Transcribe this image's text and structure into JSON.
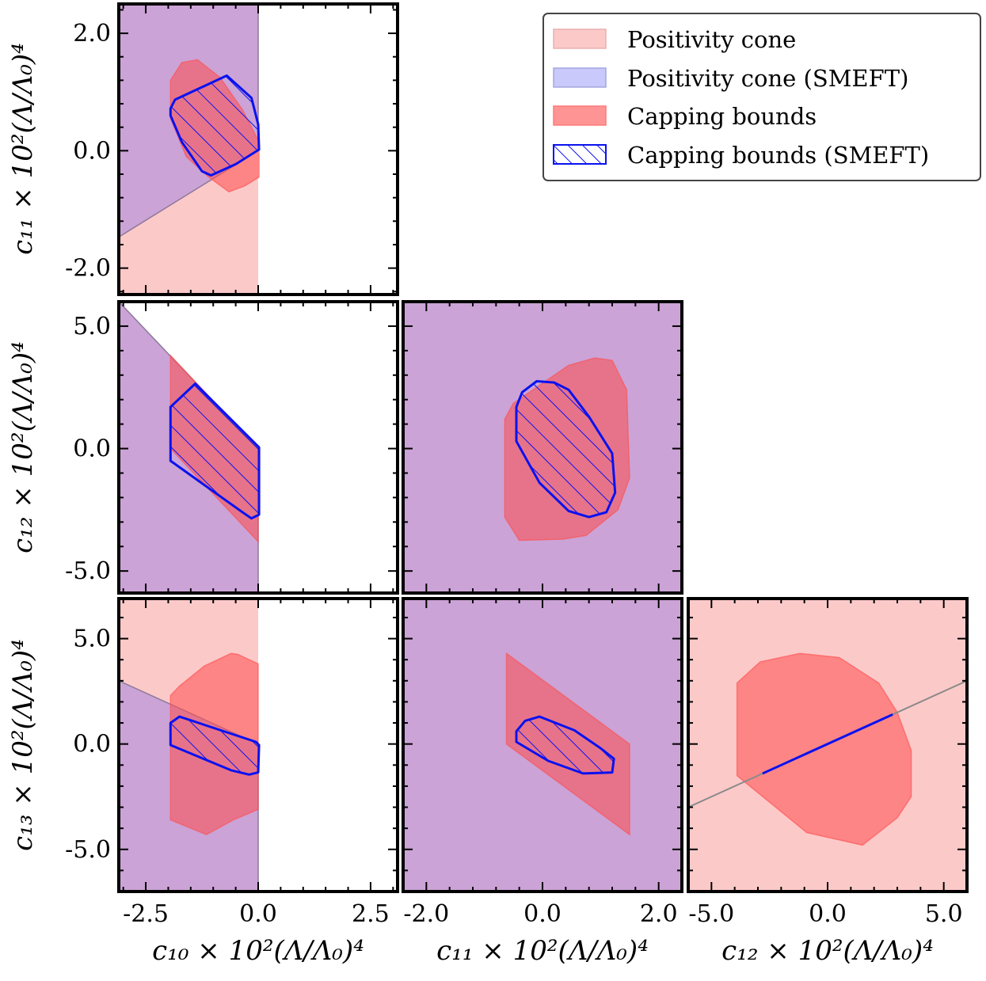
{
  "legend": {
    "items": [
      {
        "label": "Positivity cone",
        "kind": "cone"
      },
      {
        "label": "Positivity cone (SMEFT)",
        "kind": "cone_smeft"
      },
      {
        "label": "Capping bounds",
        "kind": "cap"
      },
      {
        "label": "Capping bounds (SMEFT)",
        "kind": "cap_smeft"
      }
    ]
  },
  "colors": {
    "cone": "#fcc9c9",
    "cone_smeft": "#cba3d6",
    "cap": "#ff4d4d",
    "smeft": "#0a12ef",
    "frame": "#000000"
  },
  "axes_labels": {
    "x": [
      "c₁₀ × 10²(Λ/Λ₀)⁴",
      "c₁₁ × 10²(Λ/Λ₀)⁴",
      "c₁₂ × 10²(Λ/Λ₀)⁴"
    ],
    "y": [
      "c₁₁ × 10²(Λ/Λ₀)⁴",
      "c₁₂ × 10²(Λ/Λ₀)⁴",
      "c₁₃ × 10²(Λ/Λ₀)⁴"
    ]
  },
  "chart_data": [
    {
      "id": "c10-c11",
      "type": "area",
      "xlabel": "c10 x 10^2 (L/L0)^4",
      "ylabel": "c11 x 10^2 (L/L0)^4",
      "xlim": [
        -3.1,
        3.1
      ],
      "ylim": [
        -2.45,
        2.5
      ],
      "xticks": [
        {
          "v": -2.5,
          "t": "-2.5"
        },
        {
          "v": 0.0,
          "t": "0.0"
        },
        {
          "v": 2.5,
          "t": "2.5"
        }
      ],
      "yticks": [
        {
          "v": 2.0,
          "t": "2.0"
        },
        {
          "v": 0.0,
          "t": "0.0"
        },
        {
          "v": -2.0,
          "t": "-2.0"
        }
      ],
      "show_xticklabels": false,
      "show_yticklabels": true,
      "cone": [
        [
          -3.1,
          -3.0
        ],
        [
          0.0,
          -3.0
        ],
        [
          0.0,
          3.0
        ],
        [
          -3.1,
          3.0
        ]
      ],
      "cone_smeft": [
        [
          -3.1,
          -1.47
        ],
        [
          0.0,
          0.0
        ],
        [
          0.0,
          3.0
        ],
        [
          -3.1,
          3.0
        ]
      ],
      "cap": [
        [
          -1.95,
          1.2
        ],
        [
          -1.7,
          1.5
        ],
        [
          -1.35,
          1.55
        ],
        [
          -0.85,
          1.25
        ],
        [
          -0.35,
          0.7
        ],
        [
          0.02,
          0.15
        ],
        [
          0.02,
          -0.45
        ],
        [
          -0.3,
          -0.6
        ],
        [
          -0.65,
          -0.7
        ],
        [
          -1.1,
          -0.45
        ],
        [
          -1.6,
          -0.1
        ],
        [
          -1.95,
          0.55
        ]
      ],
      "smeft": [
        [
          -1.95,
          0.72
        ],
        [
          -1.85,
          0.87
        ],
        [
          -0.7,
          1.28
        ],
        [
          -0.15,
          0.9
        ],
        [
          0.0,
          0.45
        ],
        [
          0.02,
          0.02
        ],
        [
          -0.5,
          -0.23
        ],
        [
          -1.05,
          -0.42
        ],
        [
          -1.25,
          -0.35
        ],
        [
          -1.7,
          0.15
        ],
        [
          -1.95,
          0.6
        ]
      ],
      "smeft_hatch": true
    },
    {
      "id": "c10-c12",
      "type": "area",
      "xlabel": "c10 x 10^2 (L/L0)^4",
      "ylabel": "c12 x 10^2 (L/L0)^4",
      "xlim": [
        -3.1,
        3.1
      ],
      "ylim": [
        -5.9,
        6.0
      ],
      "xticks": [
        {
          "v": -2.5,
          "t": "-2.5"
        },
        {
          "v": 0.0,
          "t": "0.0"
        },
        {
          "v": 2.5,
          "t": "2.5"
        }
      ],
      "yticks": [
        {
          "v": 5.0,
          "t": "5.0"
        },
        {
          "v": 0.0,
          "t": "0.0"
        },
        {
          "v": -5.0,
          "t": "-5.0"
        }
      ],
      "show_xticklabels": false,
      "show_yticklabels": true,
      "cone": [
        [
          -3.1,
          6.0
        ],
        [
          0.0,
          0.0
        ],
        [
          0.0,
          -5.9
        ],
        [
          -3.1,
          -5.9
        ]
      ],
      "cone_smeft": [
        [
          -3.1,
          6.0
        ],
        [
          0.0,
          0.0
        ],
        [
          0.0,
          -5.9
        ],
        [
          -3.1,
          -5.9
        ]
      ],
      "cap": [
        [
          -1.95,
          3.8
        ],
        [
          0.0,
          0.0
        ],
        [
          0.0,
          -3.8
        ],
        [
          -1.95,
          0.0
        ]
      ],
      "smeft": [
        [
          -1.95,
          1.7
        ],
        [
          -1.4,
          2.65
        ],
        [
          0.02,
          0.05
        ],
        [
          0.02,
          -2.7
        ],
        [
          -0.15,
          -2.85
        ],
        [
          -0.35,
          -2.6
        ],
        [
          -1.95,
          -0.5
        ]
      ],
      "smeft_hatch": true
    },
    {
      "id": "c11-c12",
      "type": "area",
      "xlabel": "c11 x 10^2 (L/L0)^4",
      "ylabel": "c12 x 10^2 (L/L0)^4",
      "xlim": [
        -2.4,
        2.4
      ],
      "ylim": [
        -5.9,
        6.0
      ],
      "xticks": [
        {
          "v": -2.0,
          "t": "-2.0"
        },
        {
          "v": 0.0,
          "t": "0.0"
        },
        {
          "v": 2.0,
          "t": "2.0"
        }
      ],
      "yticks": [
        {
          "v": 5.0,
          "t": "5.0"
        },
        {
          "v": 0.0,
          "t": "0.0"
        },
        {
          "v": -5.0,
          "t": "-5.0"
        }
      ],
      "show_xticklabels": false,
      "show_yticklabels": false,
      "cone": [
        [
          -2.4,
          -5.9
        ],
        [
          2.4,
          -5.9
        ],
        [
          2.4,
          6.0
        ],
        [
          -2.4,
          6.0
        ]
      ],
      "cone_smeft": [
        [
          -2.4,
          -5.9
        ],
        [
          2.4,
          -5.9
        ],
        [
          2.4,
          6.0
        ],
        [
          -2.4,
          6.0
        ]
      ],
      "cap": [
        [
          -0.65,
          1.2
        ],
        [
          -0.5,
          1.85
        ],
        [
          0.45,
          3.4
        ],
        [
          0.9,
          3.7
        ],
        [
          1.2,
          3.6
        ],
        [
          1.45,
          2.4
        ],
        [
          1.5,
          -1.2
        ],
        [
          1.3,
          -2.5
        ],
        [
          0.75,
          -3.55
        ],
        [
          0.35,
          -3.7
        ],
        [
          -0.4,
          -3.75
        ],
        [
          -0.65,
          -2.8
        ]
      ],
      "smeft": [
        [
          -0.45,
          1.7
        ],
        [
          -0.35,
          2.3
        ],
        [
          -0.1,
          2.75
        ],
        [
          0.2,
          2.7
        ],
        [
          0.45,
          2.4
        ],
        [
          0.8,
          1.3
        ],
        [
          1.2,
          -0.2
        ],
        [
          1.25,
          -1.8
        ],
        [
          1.1,
          -2.6
        ],
        [
          0.8,
          -2.8
        ],
        [
          0.45,
          -2.55
        ],
        [
          -0.05,
          -1.4
        ],
        [
          -0.45,
          0.3
        ]
      ],
      "smeft_hatch": true
    },
    {
      "id": "c10-c13",
      "type": "area",
      "xlabel": "c10 x 10^2 (L/L0)^4",
      "ylabel": "c13 x 10^2 (L/L0)^4",
      "xlim": [
        -3.1,
        3.1
      ],
      "ylim": [
        -7.0,
        6.9
      ],
      "xticks": [
        {
          "v": -2.5,
          "t": "-2.5"
        },
        {
          "v": 0.0,
          "t": "0.0"
        },
        {
          "v": 2.5,
          "t": "2.5"
        }
      ],
      "yticks": [
        {
          "v": 5.0,
          "t": "5.0"
        },
        {
          "v": 0.0,
          "t": "0.0"
        },
        {
          "v": -5.0,
          "t": "-5.0"
        }
      ],
      "show_xticklabels": true,
      "show_yticklabels": true,
      "cone": [
        [
          -3.1,
          -7.0
        ],
        [
          0.0,
          -7.0
        ],
        [
          0.0,
          6.9
        ],
        [
          -3.1,
          6.9
        ]
      ],
      "cone_smeft": [
        [
          -3.1,
          -7.0
        ],
        [
          0.0,
          -7.0
        ],
        [
          0.0,
          0.0
        ],
        [
          -3.1,
          3.0
        ]
      ],
      "cap": [
        [
          -1.95,
          2.3
        ],
        [
          -1.75,
          2.75
        ],
        [
          -1.2,
          3.7
        ],
        [
          -0.6,
          4.3
        ],
        [
          -0.45,
          4.25
        ],
        [
          0.0,
          3.8
        ],
        [
          0.0,
          -3.1
        ],
        [
          -0.55,
          -3.6
        ],
        [
          -1.15,
          -4.3
        ],
        [
          -1.95,
          -3.6
        ]
      ],
      "smeft": [
        [
          -1.95,
          0.3
        ],
        [
          -1.95,
          1.0
        ],
        [
          -1.75,
          1.3
        ],
        [
          -0.05,
          0.1
        ],
        [
          0.02,
          -0.05
        ],
        [
          0.0,
          -1.35
        ],
        [
          -0.2,
          -1.45
        ],
        [
          -0.6,
          -1.25
        ],
        [
          -1.95,
          -0.05
        ]
      ],
      "smeft_hatch": true
    },
    {
      "id": "c11-c13",
      "type": "area",
      "xlabel": "c11 x 10^2 (L/L0)^4",
      "ylabel": "c13 x 10^2 (L/L0)^4",
      "xlim": [
        -2.4,
        2.4
      ],
      "ylim": [
        -7.0,
        6.9
      ],
      "xticks": [
        {
          "v": -2.0,
          "t": "-2.0"
        },
        {
          "v": 0.0,
          "t": "0.0"
        },
        {
          "v": 2.0,
          "t": "2.0"
        }
      ],
      "yticks": [
        {
          "v": 5.0,
          "t": "5.0"
        },
        {
          "v": 0.0,
          "t": "0.0"
        },
        {
          "v": -5.0,
          "t": "-5.0"
        }
      ],
      "show_xticklabels": true,
      "show_yticklabels": false,
      "cone": [
        [
          -2.4,
          -7.0
        ],
        [
          2.4,
          -7.0
        ],
        [
          2.4,
          6.9
        ],
        [
          -2.4,
          6.9
        ]
      ],
      "cone_smeft": [
        [
          -2.4,
          -7.0
        ],
        [
          2.4,
          -7.0
        ],
        [
          2.4,
          6.9
        ],
        [
          -2.4,
          6.9
        ]
      ],
      "cap": [
        [
          -0.62,
          4.3
        ],
        [
          1.4,
          0.2
        ],
        [
          1.5,
          0.0
        ],
        [
          1.5,
          -4.3
        ],
        [
          -0.62,
          0.0
        ]
      ],
      "smeft": [
        [
          -0.45,
          0.6
        ],
        [
          -0.3,
          1.1
        ],
        [
          -0.05,
          1.3
        ],
        [
          0.55,
          0.65
        ],
        [
          1.0,
          -0.2
        ],
        [
          1.23,
          -0.7
        ],
        [
          1.2,
          -1.35
        ],
        [
          0.7,
          -1.4
        ],
        [
          0.1,
          -0.8
        ],
        [
          -0.45,
          0.1
        ]
      ],
      "smeft_hatch": true
    },
    {
      "id": "c12-c13",
      "type": "area",
      "xlabel": "c12 x 10^2 (L/L0)^4",
      "ylabel": "c13 x 10^2 (L/L0)^4",
      "xlim": [
        -6.0,
        6.0
      ],
      "ylim": [
        -7.0,
        6.9
      ],
      "xticks": [
        {
          "v": -5.0,
          "t": "-5.0"
        },
        {
          "v": 0.0,
          "t": "0.0"
        },
        {
          "v": 5.0,
          "t": "5.0"
        }
      ],
      "yticks": [
        {
          "v": 5.0,
          "t": "5.0"
        },
        {
          "v": 0.0,
          "t": "0.0"
        },
        {
          "v": -5.0,
          "t": "-5.0"
        }
      ],
      "show_xticklabels": true,
      "show_yticklabels": false,
      "cone": [
        [
          -6.0,
          -7.0
        ],
        [
          6.0,
          -7.0
        ],
        [
          6.0,
          6.9
        ],
        [
          -6.0,
          6.9
        ]
      ],
      "cone_line": [
        [
          -6.0,
          -3.0
        ],
        [
          6.0,
          3.0
        ]
      ],
      "cap": [
        [
          -3.9,
          2.9
        ],
        [
          -2.9,
          3.9
        ],
        [
          -1.2,
          4.3
        ],
        [
          0.5,
          4.1
        ],
        [
          2.2,
          2.9
        ],
        [
          3.0,
          1.5
        ],
        [
          3.6,
          -0.3
        ],
        [
          3.6,
          -2.5
        ],
        [
          3.0,
          -3.5
        ],
        [
          1.5,
          -4.8
        ],
        [
          -0.9,
          -4.2
        ],
        [
          -3.9,
          -1.5
        ]
      ],
      "smeft_line": [
        [
          -2.8,
          -1.4
        ],
        [
          2.8,
          1.4
        ]
      ],
      "smeft_hatch": false
    }
  ]
}
